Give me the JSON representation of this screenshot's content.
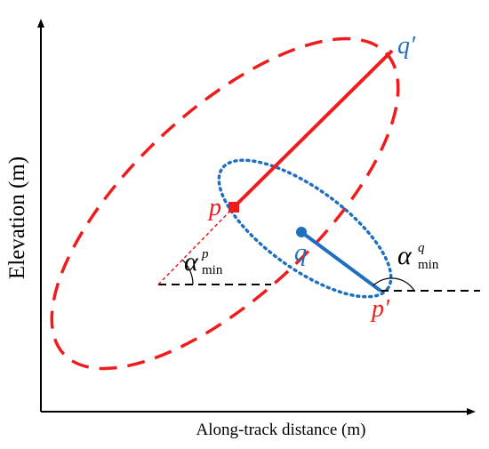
{
  "axes": {
    "x_label": "Along-track distance (m)",
    "y_label": "Elevation (m)"
  },
  "points": {
    "p": "p",
    "p_prime": "p′",
    "q": "q",
    "q_prime": "q′"
  },
  "angles": {
    "alpha_p": {
      "symbol": "α",
      "sub": "min",
      "sup": "p"
    },
    "alpha_q": {
      "symbol": "α",
      "sub": "min",
      "sup": "q"
    }
  },
  "colors": {
    "red": "#ee1c1c",
    "blue": "#1f6fc0",
    "black": "#000000"
  }
}
